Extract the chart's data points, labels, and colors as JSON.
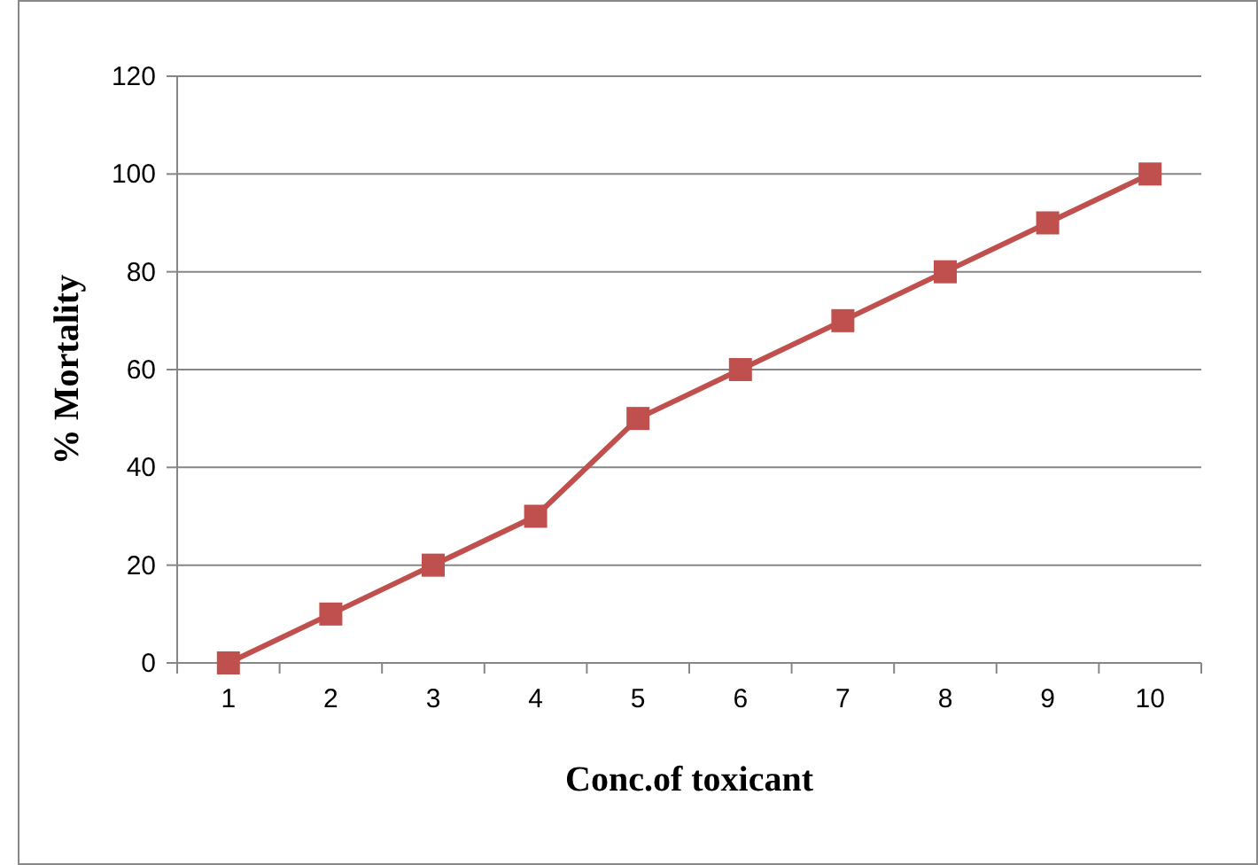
{
  "chart_data": {
    "type": "line",
    "xlabel": "Conc.of toxicant",
    "ylabel": "% Mortality",
    "categories": [
      "1",
      "2",
      "3",
      "4",
      "5",
      "6",
      "7",
      "8",
      "9",
      "10"
    ],
    "series": [
      {
        "color": "#c0504d",
        "values": [
          0,
          10,
          20,
          30,
          50,
          60,
          70,
          80,
          90,
          100
        ]
      }
    ],
    "ylim": [
      0,
      120
    ],
    "yticks": [
      0,
      20,
      40,
      60,
      80,
      100,
      120
    ],
    "grid": "y",
    "marker": "square",
    "line_style": "solid"
  }
}
